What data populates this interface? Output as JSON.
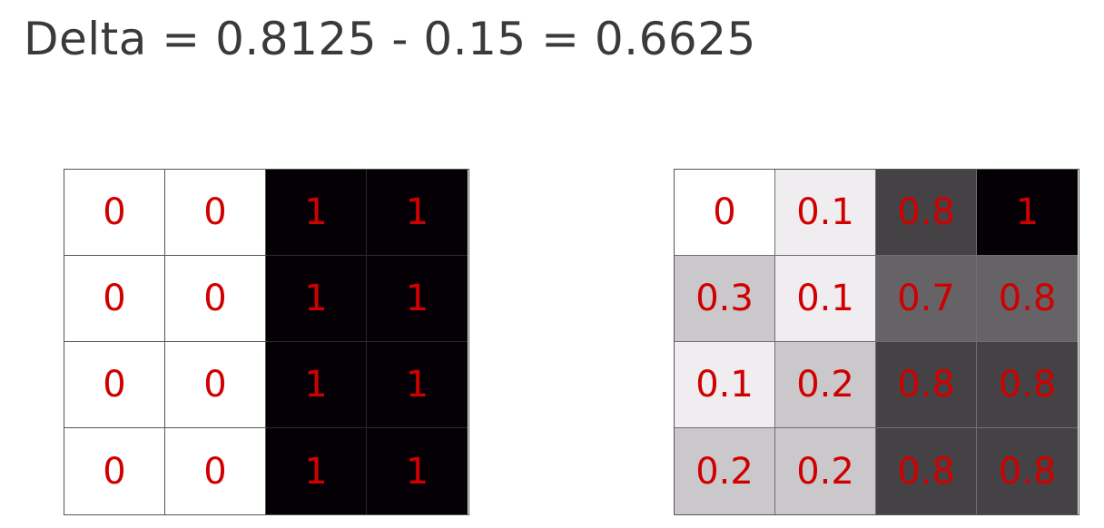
{
  "formula": "Delta = 0.8125 - 0.15 = 0.6625",
  "left_grid": {
    "labels": [
      [
        "0",
        "0",
        "1",
        "1"
      ],
      [
        "0",
        "0",
        "1",
        "1"
      ],
      [
        "0",
        "0",
        "1",
        "1"
      ],
      [
        "0",
        "0",
        "1",
        "1"
      ]
    ],
    "fill_colors": [
      [
        "#ffffff",
        "#ffffff",
        "#050005",
        "#050005"
      ],
      [
        "#ffffff",
        "#ffffff",
        "#050005",
        "#050005"
      ],
      [
        "#ffffff",
        "#ffffff",
        "#050005",
        "#050005"
      ],
      [
        "#ffffff",
        "#ffffff",
        "#050005",
        "#050005"
      ]
    ]
  },
  "right_grid": {
    "labels": [
      [
        "0",
        "0.1",
        "0.8",
        "1"
      ],
      [
        "0.3",
        "0.1",
        "0.7",
        "0.8"
      ],
      [
        "0.1",
        "0.2",
        "0.8",
        "0.8"
      ],
      [
        "0.2",
        "0.2",
        "0.8",
        "0.8"
      ]
    ],
    "fill_colors": [
      [
        "#ffffff",
        "#efedef",
        "#444244",
        "#050005"
      ],
      [
        "#cac8ca",
        "#efedef",
        "#656365",
        "#656365"
      ],
      [
        "#efedef",
        "#cac8ca",
        "#444244",
        "#444244"
      ],
      [
        "#cac8ca",
        "#cac8ca",
        "#444244",
        "#444244"
      ]
    ]
  },
  "colors": {
    "value_text": "#d00000",
    "formula_text": "#3a3a3a",
    "grid_line": "#555555"
  }
}
